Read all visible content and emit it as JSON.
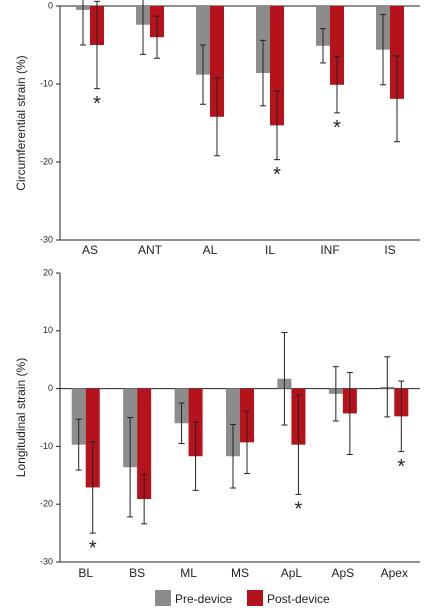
{
  "chart_data": [
    {
      "type": "bar",
      "y_label": "Circumferential strain (%)",
      "categories": [
        "AS",
        "ANT",
        "AL",
        "IL",
        "INF",
        "IS"
      ],
      "series": [
        {
          "name": "Pre-device",
          "color": "#8c8c8c",
          "values": [
            -0.5,
            -2.4,
            -8.8,
            -8.6,
            -5.1,
            -5.6
          ],
          "errors": [
            4.5,
            3.8,
            3.8,
            4.2,
            2.2,
            4.5
          ]
        },
        {
          "name": "Post-device",
          "color": "#b5121b",
          "values": [
            -5.0,
            -4.0,
            -14.2,
            -15.3,
            -10.1,
            -11.9
          ],
          "errors": [
            5.6,
            2.7,
            5.0,
            4.4,
            3.6,
            5.5
          ]
        }
      ],
      "annotations": [
        "*",
        null,
        null,
        "*",
        "*",
        null
      ],
      "ylim": [
        -30,
        0
      ],
      "yticks": [
        0,
        -10,
        -20,
        -30
      ]
    },
    {
      "type": "bar",
      "y_label": "Longitudinal strain (%)",
      "categories": [
        "BL",
        "BS",
        "ML",
        "MS",
        "ApL",
        "ApS",
        "Apex"
      ],
      "series": [
        {
          "name": "Pre-device",
          "color": "#8c8c8c",
          "values": [
            -9.7,
            -13.6,
            -6.0,
            -11.7,
            1.7,
            -0.9,
            0.3
          ],
          "errors": [
            4.4,
            8.6,
            3.5,
            5.5,
            8.0,
            4.7,
            5.2
          ]
        },
        {
          "name": "Post-device",
          "color": "#b5121b",
          "values": [
            -17.1,
            -19.1,
            -11.7,
            -9.3,
            -9.7,
            -4.3,
            -4.8
          ],
          "errors": [
            7.9,
            4.3,
            5.9,
            5.4,
            8.6,
            7.1,
            6.1
          ]
        }
      ],
      "annotations": [
        "*",
        null,
        null,
        null,
        "*",
        null,
        "*"
      ],
      "ylim": [
        -30,
        20
      ],
      "yticks": [
        20,
        10,
        0,
        -10,
        -20,
        -30
      ],
      "legend": "bottom"
    }
  ]
}
